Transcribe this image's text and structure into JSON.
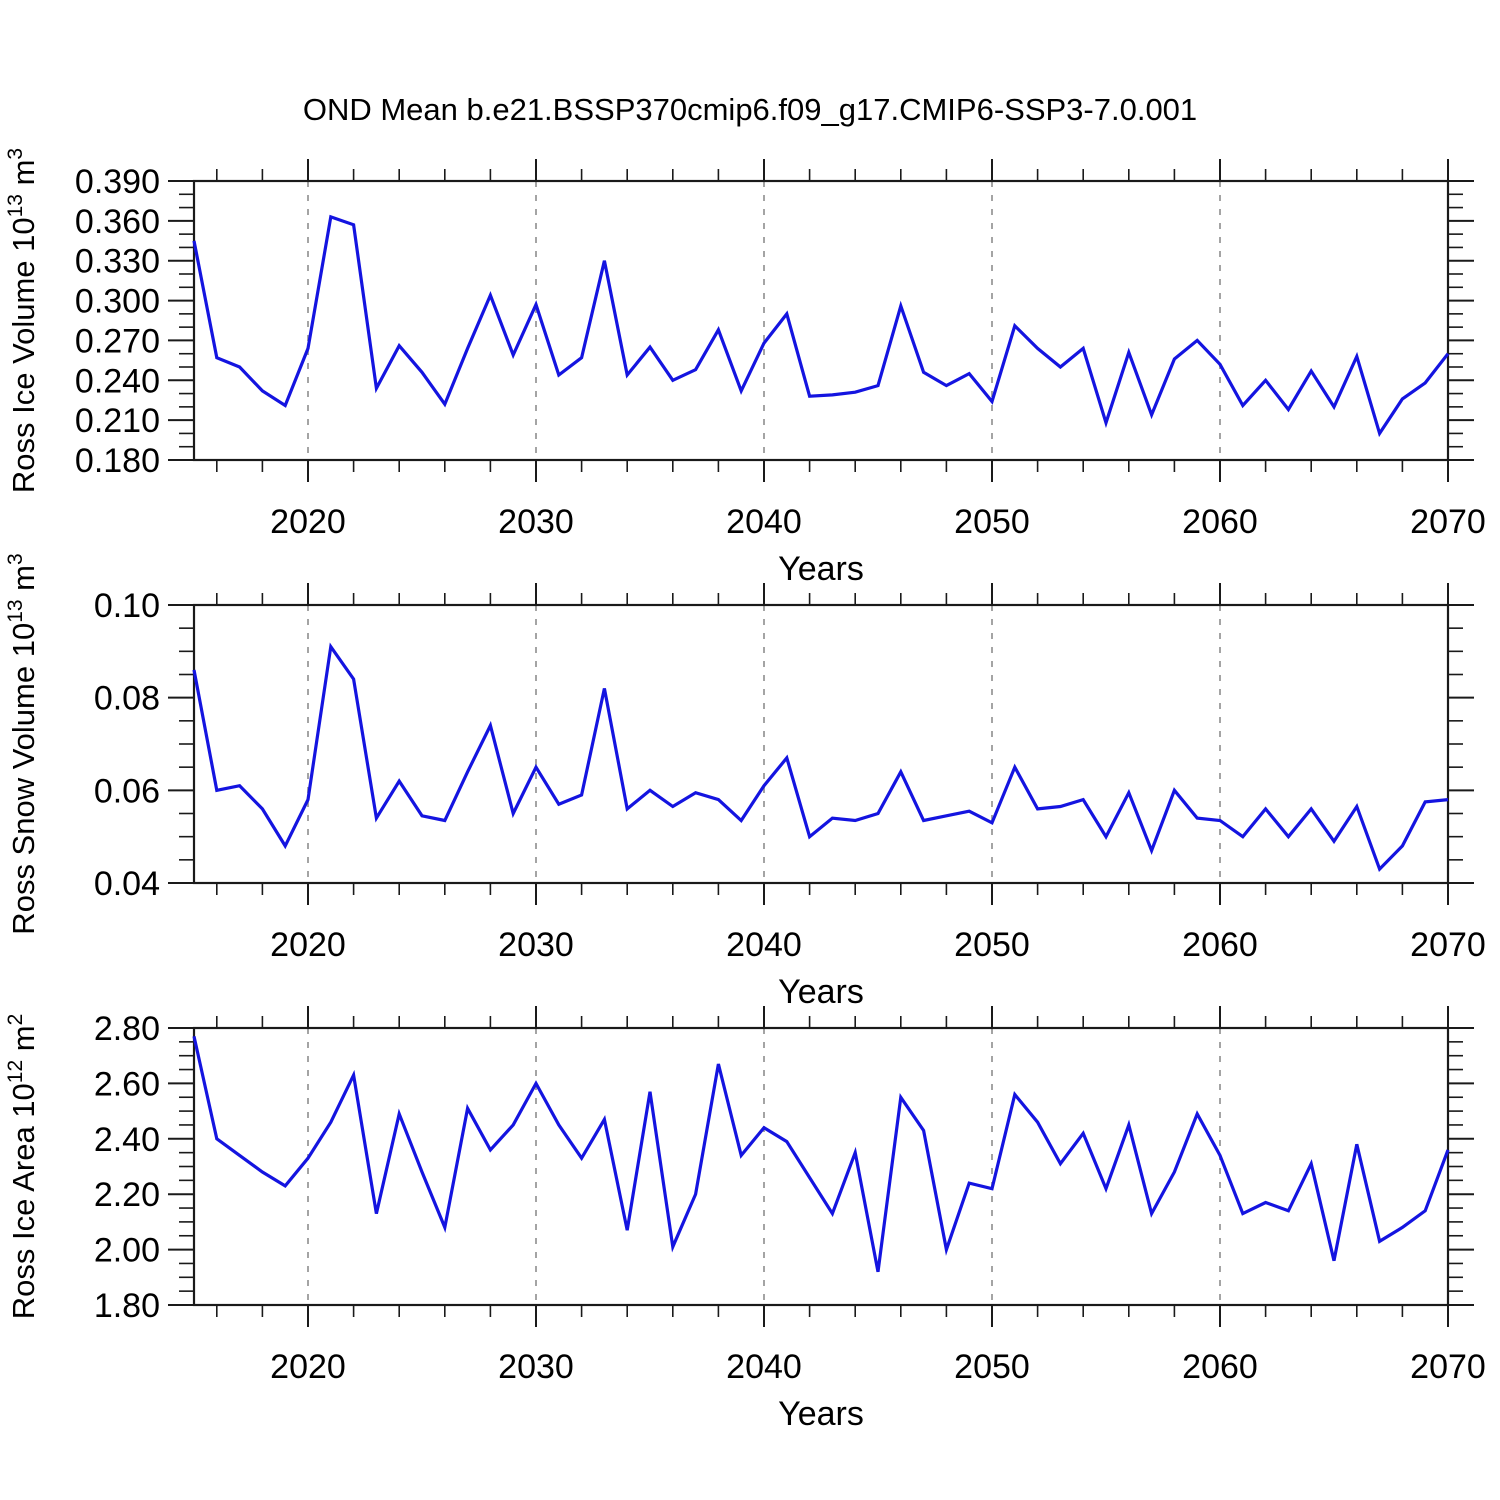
{
  "title": "OND Mean b.e21.BSSP370cmip6.f09_g17.CMIP6-SSP3-7.0.001",
  "colors": {
    "line": "#1414e0",
    "grid": "#9a9a9a",
    "axis": "#1a1a1a"
  },
  "chart_data": [
    {
      "type": "line",
      "name": "ross-ice-volume",
      "ylabel": "Ross Ice Volume 10^13 m^3",
      "ylabel_parts": [
        {
          "text": "Ross Ice Volume 10",
          "sup": false
        },
        {
          "text": "13",
          "sup": true
        },
        {
          "text": " m",
          "sup": false
        },
        {
          "text": "3",
          "sup": true
        }
      ],
      "xlabel": "Years",
      "xlim": [
        2015,
        2070
      ],
      "ylim": [
        0.18,
        0.39
      ],
      "ytick_major": 0.03,
      "ytick_minor": 0.01,
      "ytick_labels": [
        "0.180",
        "0.210",
        "0.240",
        "0.270",
        "0.300",
        "0.330",
        "0.360",
        "0.390"
      ],
      "xtick_major_step": 10,
      "xtick_minor_step": 2,
      "xtick_labels": [
        "2020",
        "2030",
        "2040",
        "2050",
        "2060",
        "2070"
      ],
      "grid": "vertical-dashed",
      "legend": "none",
      "x": [
        2015,
        2016,
        2017,
        2018,
        2019,
        2020,
        2021,
        2022,
        2023,
        2024,
        2025,
        2026,
        2027,
        2028,
        2029,
        2030,
        2031,
        2032,
        2033,
        2034,
        2035,
        2036,
        2037,
        2038,
        2039,
        2040,
        2041,
        2042,
        2043,
        2044,
        2045,
        2046,
        2047,
        2048,
        2049,
        2050,
        2051,
        2052,
        2053,
        2054,
        2055,
        2056,
        2057,
        2058,
        2059,
        2060,
        2061,
        2062,
        2063,
        2064,
        2065,
        2066,
        2067,
        2068,
        2069,
        2070
      ],
      "values": [
        0.345,
        0.257,
        0.25,
        0.232,
        0.221,
        0.264,
        0.363,
        0.357,
        0.234,
        0.266,
        0.246,
        0.222,
        0.264,
        0.304,
        0.259,
        0.297,
        0.244,
        0.257,
        0.33,
        0.244,
        0.265,
        0.24,
        0.248,
        0.278,
        0.232,
        0.268,
        0.29,
        0.228,
        0.229,
        0.231,
        0.236,
        0.296,
        0.246,
        0.236,
        0.245,
        0.224,
        0.281,
        0.264,
        0.25,
        0.264,
        0.208,
        0.261,
        0.214,
        0.256,
        0.27,
        0.252,
        0.221,
        0.24,
        0.218,
        0.247,
        0.22,
        0.258,
        0.2,
        0.226,
        0.238,
        0.26
      ]
    },
    {
      "type": "line",
      "name": "ross-snow-volume",
      "ylabel": "Ross Snow Volume 10^13 m^3",
      "ylabel_parts": [
        {
          "text": "Ross Snow Volume 10",
          "sup": false
        },
        {
          "text": "13",
          "sup": true
        },
        {
          "text": " m",
          "sup": false
        },
        {
          "text": "3",
          "sup": true
        }
      ],
      "xlabel": "Years",
      "xlim": [
        2015,
        2070
      ],
      "ylim": [
        0.04,
        0.1
      ],
      "ytick_major": 0.02,
      "ytick_minor": 0.005,
      "ytick_labels": [
        "0.04",
        "0.06",
        "0.08",
        "0.10"
      ],
      "xtick_major_step": 10,
      "xtick_minor_step": 2,
      "xtick_labels": [
        "2020",
        "2030",
        "2040",
        "2050",
        "2060",
        "2070"
      ],
      "grid": "vertical-dashed",
      "legend": "none",
      "x": [
        2015,
        2016,
        2017,
        2018,
        2019,
        2020,
        2021,
        2022,
        2023,
        2024,
        2025,
        2026,
        2027,
        2028,
        2029,
        2030,
        2031,
        2032,
        2033,
        2034,
        2035,
        2036,
        2037,
        2038,
        2039,
        2040,
        2041,
        2042,
        2043,
        2044,
        2045,
        2046,
        2047,
        2048,
        2049,
        2050,
        2051,
        2052,
        2053,
        2054,
        2055,
        2056,
        2057,
        2058,
        2059,
        2060,
        2061,
        2062,
        2063,
        2064,
        2065,
        2066,
        2067,
        2068,
        2069,
        2070
      ],
      "values": [
        0.086,
        0.06,
        0.061,
        0.056,
        0.048,
        0.058,
        0.091,
        0.084,
        0.054,
        0.062,
        0.0545,
        0.0535,
        0.064,
        0.074,
        0.055,
        0.065,
        0.057,
        0.059,
        0.082,
        0.056,
        0.06,
        0.0565,
        0.0595,
        0.058,
        0.0535,
        0.061,
        0.067,
        0.05,
        0.054,
        0.0535,
        0.055,
        0.064,
        0.0535,
        0.0545,
        0.0555,
        0.053,
        0.065,
        0.056,
        0.0565,
        0.058,
        0.05,
        0.0595,
        0.047,
        0.06,
        0.054,
        0.0535,
        0.05,
        0.056,
        0.05,
        0.056,
        0.049,
        0.0565,
        0.043,
        0.048,
        0.0575,
        0.058
      ]
    },
    {
      "type": "line",
      "name": "ross-ice-area",
      "ylabel": "Ross Ice Area 10^12 m^2",
      "ylabel_parts": [
        {
          "text": "Ross Ice Area 10",
          "sup": false
        },
        {
          "text": "12",
          "sup": true
        },
        {
          "text": " m",
          "sup": false
        },
        {
          "text": "2",
          "sup": true
        }
      ],
      "xlabel": "Years",
      "xlim": [
        2015,
        2070
      ],
      "ylim": [
        1.8,
        2.8
      ],
      "ytick_major": 0.2,
      "ytick_minor": 0.05,
      "ytick_labels": [
        "1.80",
        "2.00",
        "2.20",
        "2.40",
        "2.60",
        "2.80"
      ],
      "xtick_major_step": 10,
      "xtick_minor_step": 2,
      "xtick_labels": [
        "2020",
        "2030",
        "2040",
        "2050",
        "2060",
        "2070"
      ],
      "grid": "vertical-dashed",
      "legend": "none",
      "x": [
        2015,
        2016,
        2017,
        2018,
        2019,
        2020,
        2021,
        2022,
        2023,
        2024,
        2025,
        2026,
        2027,
        2028,
        2029,
        2030,
        2031,
        2032,
        2033,
        2034,
        2035,
        2036,
        2037,
        2038,
        2039,
        2040,
        2041,
        2042,
        2043,
        2044,
        2045,
        2046,
        2047,
        2048,
        2049,
        2050,
        2051,
        2052,
        2053,
        2054,
        2055,
        2056,
        2057,
        2058,
        2059,
        2060,
        2061,
        2062,
        2063,
        2064,
        2065,
        2066,
        2067,
        2068,
        2069,
        2070
      ],
      "values": [
        2.77,
        2.4,
        2.34,
        2.28,
        2.23,
        2.33,
        2.46,
        2.63,
        2.13,
        2.49,
        2.28,
        2.08,
        2.51,
        2.36,
        2.45,
        2.6,
        2.45,
        2.33,
        2.47,
        2.07,
        2.57,
        2.01,
        2.2,
        2.67,
        2.34,
        2.44,
        2.39,
        2.26,
        2.13,
        2.35,
        1.92,
        2.55,
        2.43,
        2.0,
        2.24,
        2.22,
        2.56,
        2.46,
        2.31,
        2.42,
        2.22,
        2.45,
        2.13,
        2.28,
        2.49,
        2.34,
        2.13,
        2.17,
        2.14,
        2.31,
        1.96,
        2.38,
        2.03,
        2.08,
        2.14,
        2.36
      ]
    }
  ]
}
